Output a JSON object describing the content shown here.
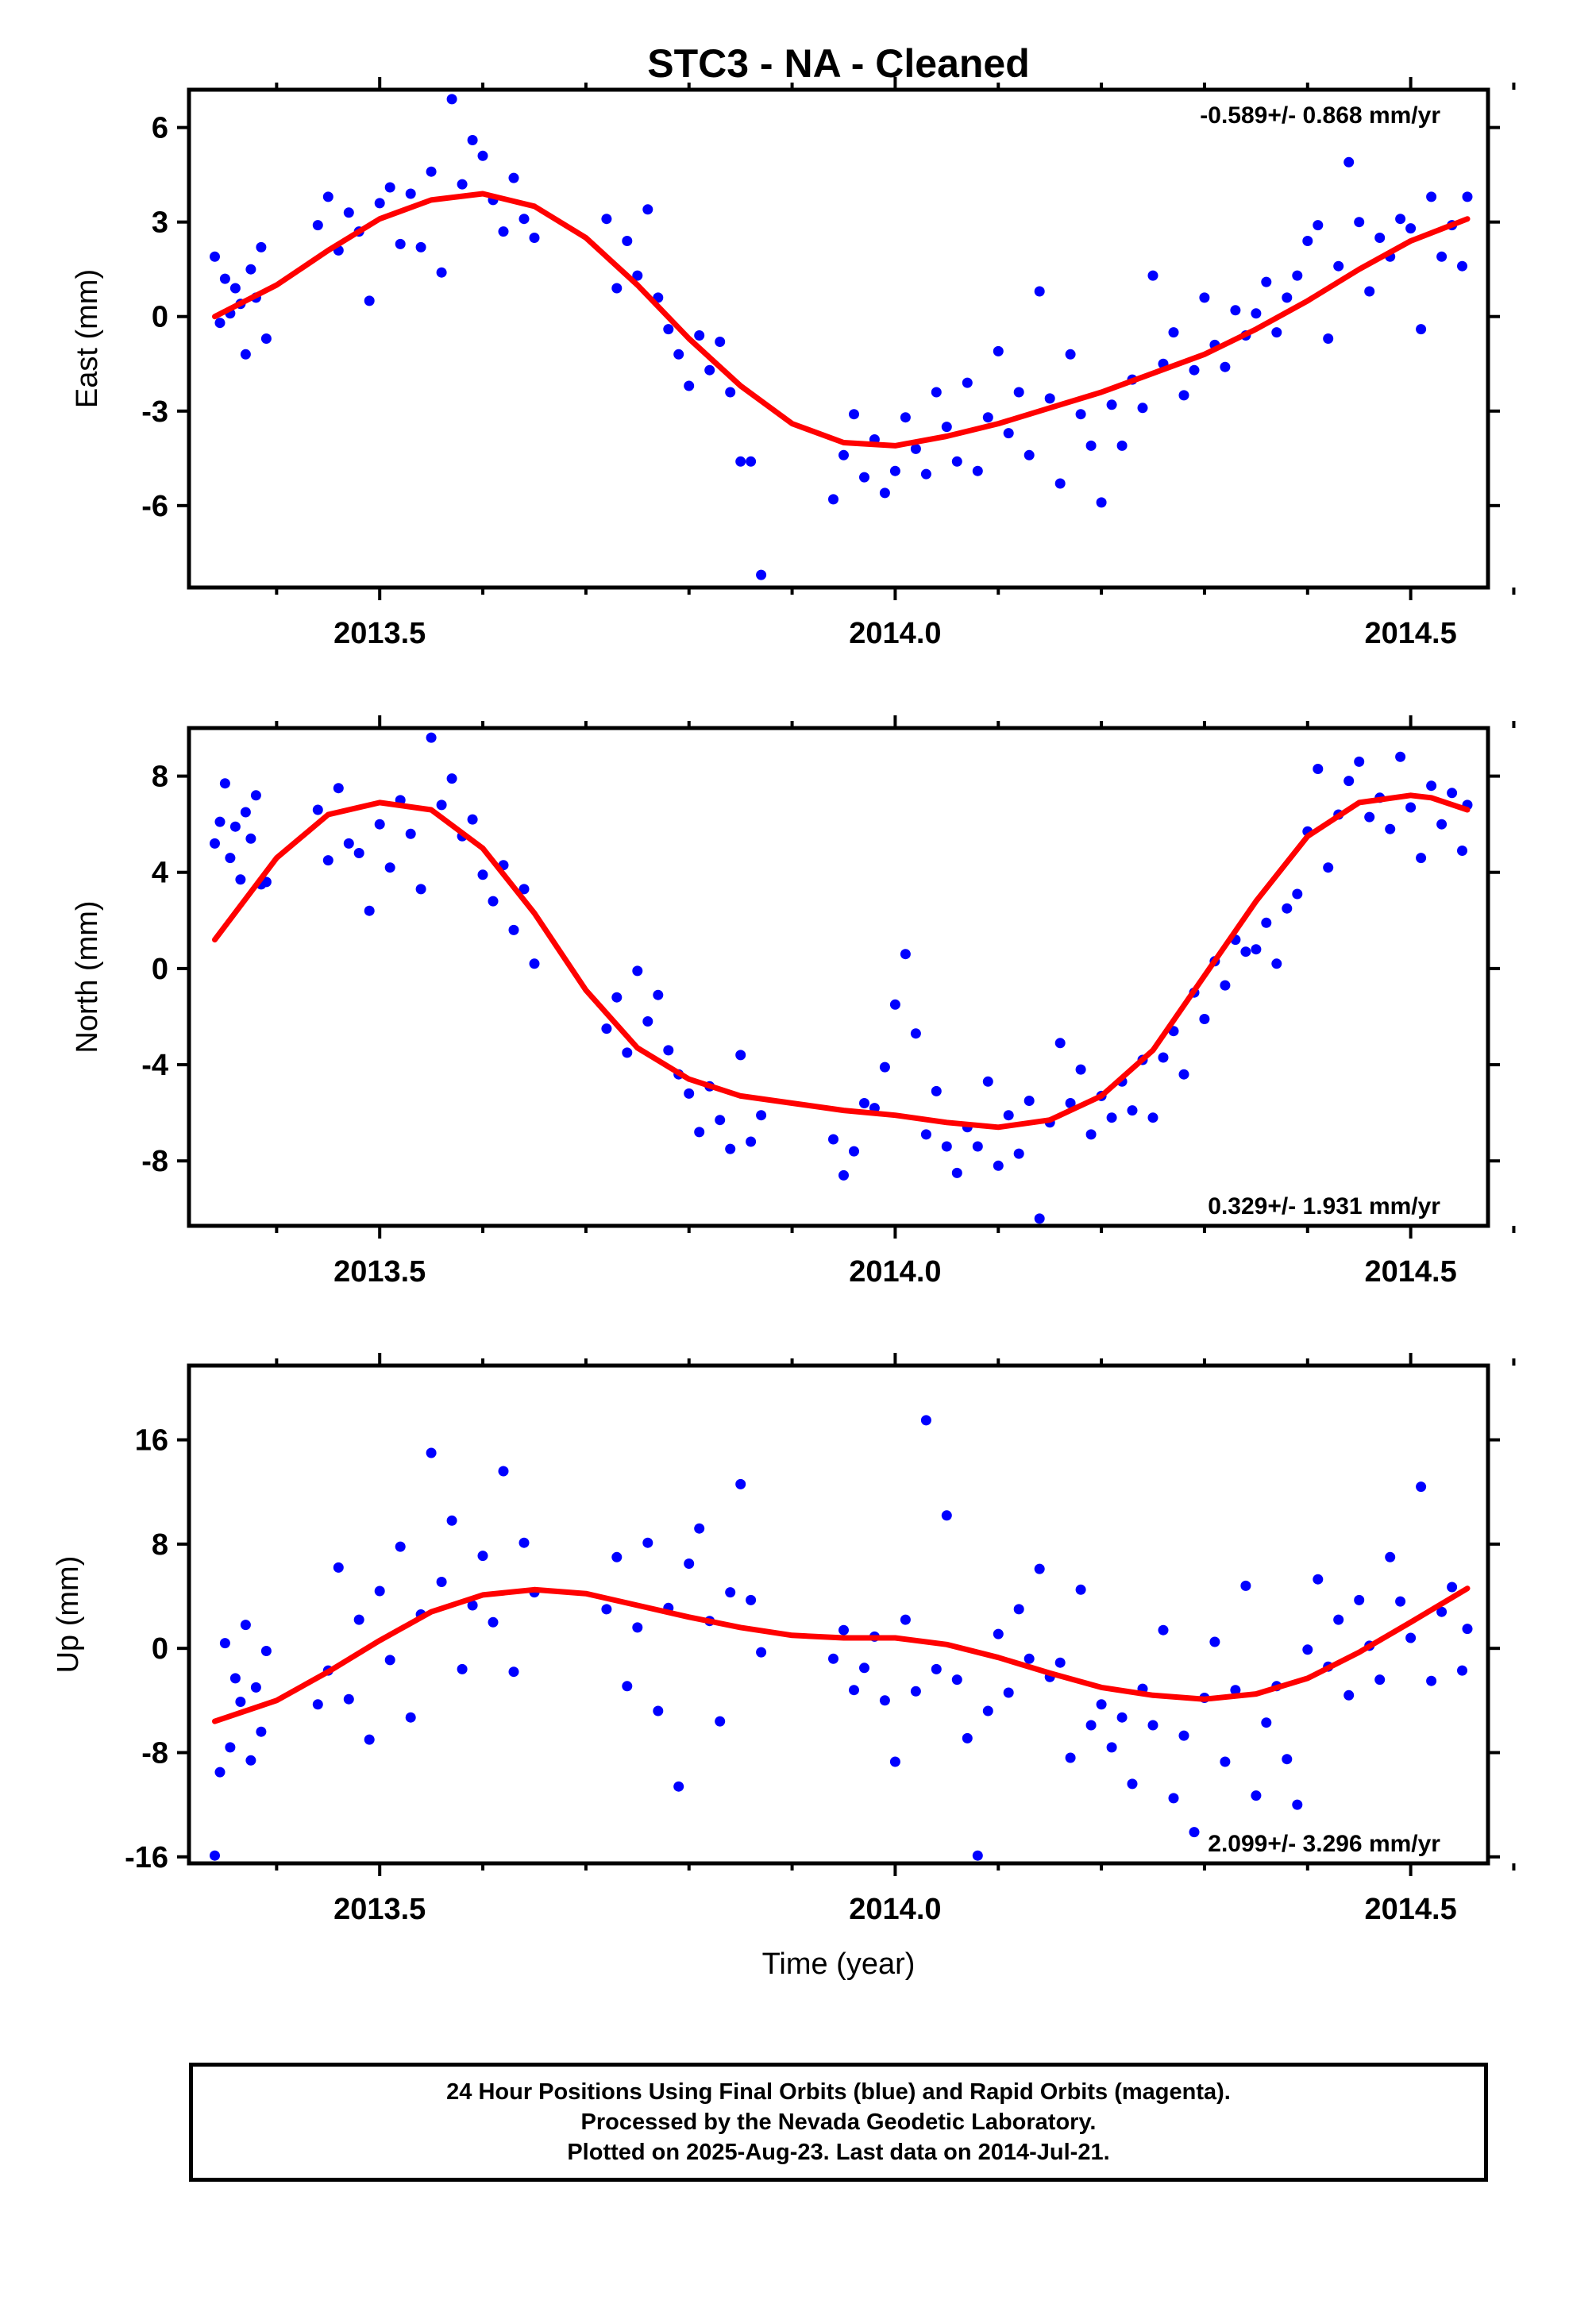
{
  "chart_data": {
    "type": "scatter",
    "title": "STC3  - NA - Cleaned",
    "xlabel": "Time (year)",
    "xlim": [
      2013.315,
      2014.575
    ],
    "xticks": [
      2013.5,
      2014.0,
      2014.5
    ],
    "x_tick_labels": [
      "2013.5",
      "2014.0",
      "2014.5"
    ],
    "colors": {
      "points": "#0000ff",
      "fit": "#ff0000",
      "axis": "#000000"
    },
    "panels": [
      {
        "id": "east",
        "ylabel": "East (mm)",
        "ylim": [
          -8.6,
          7.2
        ],
        "yticks": [
          -6,
          -3,
          0,
          3,
          6
        ],
        "y_tick_labels": [
          "-6",
          "-3",
          "0",
          "3",
          "6"
        ],
        "rate": "-0.589+/- 0.868 mm/yr",
        "rate_position": "top-right",
        "fit": {
          "x": [
            2013.34,
            2013.4,
            2013.45,
            2013.5,
            2013.55,
            2013.6,
            2013.65,
            2013.7,
            2013.75,
            2013.8,
            2013.85,
            2013.9,
            2013.95,
            2014.0,
            2014.05,
            2014.1,
            2014.15,
            2014.2,
            2014.25,
            2014.3,
            2014.35,
            2014.4,
            2014.45,
            2014.5,
            2014.555
          ],
          "y": [
            0.0,
            1.0,
            2.1,
            3.1,
            3.7,
            3.9,
            3.5,
            2.5,
            1.0,
            -0.7,
            -2.2,
            -3.4,
            -4.0,
            -4.1,
            -3.8,
            -3.4,
            -2.9,
            -2.4,
            -1.8,
            -1.2,
            -0.4,
            0.5,
            1.5,
            2.4,
            3.1
          ]
        },
        "points": {
          "x": [
            2013.34,
            2013.345,
            2013.35,
            2013.355,
            2013.36,
            2013.365,
            2013.37,
            2013.375,
            2013.38,
            2013.385,
            2013.39,
            2013.44,
            2013.45,
            2013.46,
            2013.47,
            2013.48,
            2013.49,
            2013.5,
            2013.51,
            2013.52,
            2013.53,
            2013.54,
            2013.55,
            2013.56,
            2013.57,
            2013.58,
            2013.59,
            2013.6,
            2013.61,
            2013.62,
            2013.63,
            2013.64,
            2013.65,
            2013.72,
            2013.73,
            2013.74,
            2013.75,
            2013.76,
            2013.77,
            2013.78,
            2013.79,
            2013.8,
            2013.81,
            2013.82,
            2013.83,
            2013.84,
            2013.85,
            2013.86,
            2013.87,
            2013.94,
            2013.95,
            2013.96,
            2013.97,
            2013.98,
            2013.99,
            2014.0,
            2014.01,
            2014.02,
            2014.03,
            2014.04,
            2014.05,
            2014.06,
            2014.07,
            2014.08,
            2014.09,
            2014.1,
            2014.11,
            2014.12,
            2014.13,
            2014.14,
            2014.15,
            2014.16,
            2014.17,
            2014.18,
            2014.19,
            2014.2,
            2014.21,
            2014.22,
            2014.23,
            2014.24,
            2014.25,
            2014.26,
            2014.27,
            2014.28,
            2014.29,
            2014.3,
            2014.31,
            2014.32,
            2014.33,
            2014.34,
            2014.35,
            2014.36,
            2014.37,
            2014.38,
            2014.39,
            2014.4,
            2014.41,
            2014.42,
            2014.43,
            2014.44,
            2014.45,
            2014.46,
            2014.47,
            2014.48,
            2014.49,
            2014.5,
            2014.51,
            2014.52,
            2014.53,
            2014.54,
            2014.55,
            2014.555
          ],
          "y": [
            1.9,
            -0.2,
            1.2,
            0.1,
            0.9,
            0.4,
            -1.2,
            1.5,
            0.6,
            2.2,
            -0.7,
            2.9,
            3.8,
            2.1,
            3.3,
            2.7,
            0.5,
            3.6,
            4.1,
            2.3,
            3.9,
            2.2,
            4.6,
            1.4,
            6.9,
            4.2,
            5.6,
            5.1,
            3.7,
            2.7,
            4.4,
            3.1,
            2.5,
            3.1,
            0.9,
            2.4,
            1.3,
            3.4,
            0.6,
            -0.4,
            -1.2,
            -2.2,
            -0.6,
            -1.7,
            -0.8,
            -2.4,
            -4.6,
            -4.6,
            -8.2,
            -5.8,
            -4.4,
            -3.1,
            -5.1,
            -3.9,
            -5.6,
            -4.9,
            -3.2,
            -4.2,
            -5.0,
            -2.4,
            -3.5,
            -4.6,
            -2.1,
            -4.9,
            -3.2,
            -1.1,
            -3.7,
            -2.4,
            -4.4,
            0.8,
            -2.6,
            -5.3,
            -1.2,
            -3.1,
            -4.1,
            -5.9,
            -2.8,
            -4.1,
            -2.0,
            -2.9,
            1.3,
            -1.5,
            -0.5,
            -2.5,
            -1.7,
            0.6,
            -0.9,
            -1.6,
            0.2,
            -0.6,
            0.1,
            1.1,
            -0.5,
            0.6,
            1.3,
            2.4,
            2.9,
            -0.7,
            1.6,
            4.9,
            3.0,
            0.8,
            2.5,
            1.9,
            3.1,
            2.8,
            -0.4,
            3.8,
            1.9,
            2.9,
            1.6,
            3.8
          ]
        }
      },
      {
        "id": "north",
        "ylabel": "North (mm)",
        "ylim": [
          -10.7,
          10.0
        ],
        "yticks": [
          -8,
          -4,
          0,
          4,
          8
        ],
        "y_tick_labels": [
          "-8",
          "-4",
          "0",
          "4",
          "8"
        ],
        "rate": "0.329+/- 1.931 mm/yr",
        "rate_position": "bottom-right",
        "fit": {
          "x": [
            2013.34,
            2013.4,
            2013.45,
            2013.5,
            2013.55,
            2013.6,
            2013.65,
            2013.7,
            2013.75,
            2013.8,
            2013.85,
            2013.9,
            2013.95,
            2014.0,
            2014.05,
            2014.1,
            2014.15,
            2014.2,
            2014.25,
            2014.3,
            2014.35,
            2014.4,
            2014.45,
            2014.5,
            2014.52,
            2014.555
          ],
          "y": [
            1.2,
            4.6,
            6.4,
            6.9,
            6.6,
            5.0,
            2.3,
            -0.9,
            -3.3,
            -4.6,
            -5.3,
            -5.6,
            -5.9,
            -6.1,
            -6.4,
            -6.6,
            -6.3,
            -5.3,
            -3.4,
            -0.3,
            2.8,
            5.5,
            6.9,
            7.2,
            7.1,
            6.6
          ]
        },
        "points": {
          "x": [
            2013.34,
            2013.345,
            2013.35,
            2013.355,
            2013.36,
            2013.365,
            2013.37,
            2013.375,
            2013.38,
            2013.385,
            2013.39,
            2013.44,
            2013.45,
            2013.46,
            2013.47,
            2013.48,
            2013.49,
            2013.5,
            2013.51,
            2013.52,
            2013.53,
            2013.54,
            2013.55,
            2013.56,
            2013.57,
            2013.58,
            2013.59,
            2013.6,
            2013.61,
            2013.62,
            2013.63,
            2013.64,
            2013.65,
            2013.72,
            2013.73,
            2013.74,
            2013.75,
            2013.76,
            2013.77,
            2013.78,
            2013.79,
            2013.8,
            2013.81,
            2013.82,
            2013.83,
            2013.84,
            2013.85,
            2013.86,
            2013.87,
            2013.94,
            2013.95,
            2013.96,
            2013.97,
            2013.98,
            2013.99,
            2014.0,
            2014.01,
            2014.02,
            2014.03,
            2014.04,
            2014.05,
            2014.06,
            2014.07,
            2014.08,
            2014.09,
            2014.1,
            2014.11,
            2014.12,
            2014.13,
            2014.14,
            2014.15,
            2014.16,
            2014.17,
            2014.18,
            2014.19,
            2014.2,
            2014.21,
            2014.22,
            2014.23,
            2014.24,
            2014.25,
            2014.26,
            2014.27,
            2014.28,
            2014.29,
            2014.3,
            2014.31,
            2014.32,
            2014.33,
            2014.34,
            2014.35,
            2014.36,
            2014.37,
            2014.38,
            2014.39,
            2014.4,
            2014.41,
            2014.42,
            2014.43,
            2014.44,
            2014.45,
            2014.46,
            2014.47,
            2014.48,
            2014.49,
            2014.5,
            2014.51,
            2014.52,
            2014.53,
            2014.54,
            2014.55,
            2014.555
          ],
          "y": [
            5.2,
            6.1,
            7.7,
            4.6,
            5.9,
            3.7,
            6.5,
            5.4,
            7.2,
            3.5,
            3.6,
            6.6,
            4.5,
            7.5,
            5.2,
            4.8,
            2.4,
            6.0,
            4.2,
            7.0,
            5.6,
            3.3,
            9.6,
            6.8,
            7.9,
            5.5,
            6.2,
            3.9,
            2.8,
            4.3,
            1.6,
            3.3,
            0.2,
            -2.5,
            -1.2,
            -3.5,
            -0.1,
            -2.2,
            -1.1,
            -3.4,
            -4.4,
            -5.2,
            -6.8,
            -4.9,
            -6.3,
            -7.5,
            -3.6,
            -7.2,
            -6.1,
            -7.1,
            -8.6,
            -7.6,
            -5.6,
            -5.8,
            -4.1,
            -1.5,
            0.6,
            -2.7,
            -6.9,
            -5.1,
            -7.4,
            -8.5,
            -6.6,
            -7.4,
            -4.7,
            -8.2,
            -6.1,
            -7.7,
            -5.5,
            -10.4,
            -6.4,
            -3.1,
            -5.6,
            -4.2,
            -6.9,
            -5.3,
            -6.2,
            -4.7,
            -5.9,
            -3.8,
            -6.2,
            -3.7,
            -2.6,
            -4.4,
            -1.0,
            -2.1,
            0.3,
            -0.7,
            1.2,
            0.7,
            0.8,
            1.9,
            0.2,
            2.5,
            3.1,
            5.7,
            8.3,
            4.2,
            6.4,
            7.8,
            8.6,
            6.3,
            7.1,
            5.8,
            8.8,
            6.7,
            4.6,
            7.6,
            6.0,
            7.3,
            4.9,
            6.8
          ]
        }
      },
      {
        "id": "up",
        "ylabel": "Up (mm)",
        "ylim": [
          -16.5,
          21.7
        ],
        "yticks": [
          -16,
          -8,
          0,
          8,
          16
        ],
        "y_tick_labels": [
          "-16",
          "-8",
          "0",
          "8",
          "16"
        ],
        "rate": "2.099+/- 3.296 mm/yr",
        "rate_position": "bottom-right",
        "fit": {
          "x": [
            2013.34,
            2013.4,
            2013.45,
            2013.5,
            2013.55,
            2013.6,
            2013.65,
            2013.7,
            2013.75,
            2013.8,
            2013.85,
            2013.9,
            2013.95,
            2014.0,
            2014.05,
            2014.1,
            2014.15,
            2014.2,
            2014.25,
            2014.3,
            2014.35,
            2014.4,
            2014.45,
            2014.5,
            2014.555
          ],
          "y": [
            -5.6,
            -4.0,
            -1.8,
            0.6,
            2.8,
            4.1,
            4.5,
            4.2,
            3.3,
            2.4,
            1.6,
            1.0,
            0.8,
            0.8,
            0.3,
            -0.7,
            -1.9,
            -3.0,
            -3.6,
            -3.9,
            -3.5,
            -2.3,
            -0.3,
            2.0,
            4.6
          ]
        },
        "points": {
          "x": [
            2013.34,
            2013.345,
            2013.35,
            2013.355,
            2013.36,
            2013.365,
            2013.37,
            2013.375,
            2013.38,
            2013.385,
            2013.39,
            2013.44,
            2013.45,
            2013.46,
            2013.47,
            2013.48,
            2013.49,
            2013.5,
            2013.51,
            2013.52,
            2013.53,
            2013.54,
            2013.55,
            2013.56,
            2013.57,
            2013.58,
            2013.59,
            2013.6,
            2013.61,
            2013.62,
            2013.63,
            2013.64,
            2013.65,
            2013.72,
            2013.73,
            2013.74,
            2013.75,
            2013.76,
            2013.77,
            2013.78,
            2013.79,
            2013.8,
            2013.81,
            2013.82,
            2013.83,
            2013.84,
            2013.85,
            2013.86,
            2013.87,
            2013.94,
            2013.95,
            2013.96,
            2013.97,
            2013.98,
            2013.99,
            2014.0,
            2014.01,
            2014.02,
            2014.03,
            2014.04,
            2014.05,
            2014.06,
            2014.07,
            2014.08,
            2014.09,
            2014.1,
            2014.11,
            2014.12,
            2014.13,
            2014.14,
            2014.15,
            2014.16,
            2014.17,
            2014.18,
            2014.19,
            2014.2,
            2014.21,
            2014.22,
            2014.23,
            2014.24,
            2014.25,
            2014.26,
            2014.27,
            2014.28,
            2014.29,
            2014.3,
            2014.31,
            2014.32,
            2014.33,
            2014.34,
            2014.35,
            2014.36,
            2014.37,
            2014.38,
            2014.39,
            2014.4,
            2014.41,
            2014.42,
            2014.43,
            2014.44,
            2014.45,
            2014.46,
            2014.47,
            2014.48,
            2014.49,
            2014.5,
            2014.51,
            2014.52,
            2014.53,
            2014.54,
            2014.55,
            2014.555
          ],
          "y": [
            -15.9,
            -9.5,
            0.4,
            -7.6,
            -2.3,
            -4.1,
            1.8,
            -8.6,
            -3.0,
            -6.4,
            -0.2,
            -4.3,
            -1.7,
            6.2,
            -3.9,
            2.2,
            -7.0,
            4.4,
            -0.9,
            7.8,
            -5.3,
            2.6,
            15.0,
            5.1,
            9.8,
            -1.6,
            3.3,
            7.1,
            2.0,
            13.6,
            -1.8,
            8.1,
            4.3,
            3.0,
            7.0,
            -2.9,
            1.6,
            8.1,
            -4.8,
            3.1,
            -10.6,
            6.5,
            9.2,
            2.1,
            -5.6,
            4.3,
            12.6,
            3.7,
            -0.3,
            -0.8,
            1.4,
            -3.2,
            -1.5,
            0.9,
            -4.0,
            -8.7,
            2.2,
            -3.3,
            17.5,
            -1.6,
            10.2,
            -2.4,
            -6.9,
            -15.9,
            -4.8,
            1.1,
            -3.4,
            3.0,
            -0.8,
            6.1,
            -2.2,
            -1.1,
            -8.4,
            4.5,
            -5.9,
            -4.3,
            -7.6,
            -5.3,
            -10.4,
            -3.1,
            -5.9,
            1.4,
            -11.5,
            -6.7,
            -14.1,
            -3.8,
            0.5,
            -8.7,
            -3.2,
            4.8,
            -11.3,
            -5.7,
            -2.9,
            -8.5,
            -12.0,
            -0.1,
            5.3,
            -1.4,
            2.2,
            -3.6,
            3.7,
            0.2,
            -2.4,
            7.0,
            3.6,
            0.8,
            12.4,
            -2.5,
            2.8,
            4.7,
            -1.7,
            1.5
          ]
        }
      }
    ]
  },
  "footer": {
    "line1": "24 Hour Positions Using Final Orbits (blue) and Rapid Orbits (magenta).",
    "line2": "Processed by the Nevada Geodetic Laboratory.",
    "line3": "Plotted on 2025-Aug-23. Last data on 2014-Jul-21."
  }
}
